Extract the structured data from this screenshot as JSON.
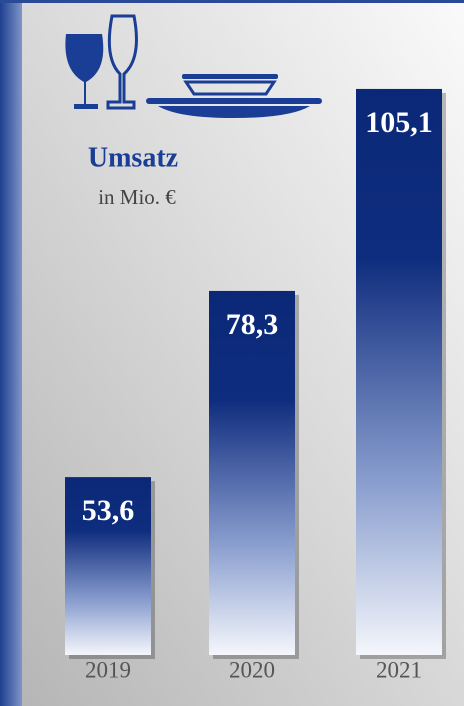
{
  "chart_data": {
    "type": "bar",
    "title": "Umsatz",
    "subtitle": "in Mio. €",
    "categories": [
      "2019",
      "2020",
      "2021"
    ],
    "values": [
      53.6,
      78.3,
      105.1
    ],
    "value_labels": [
      "53,6",
      "78,3",
      "105,1"
    ],
    "color": "#0b2878",
    "ylim": [
      30,
      110
    ]
  }
}
